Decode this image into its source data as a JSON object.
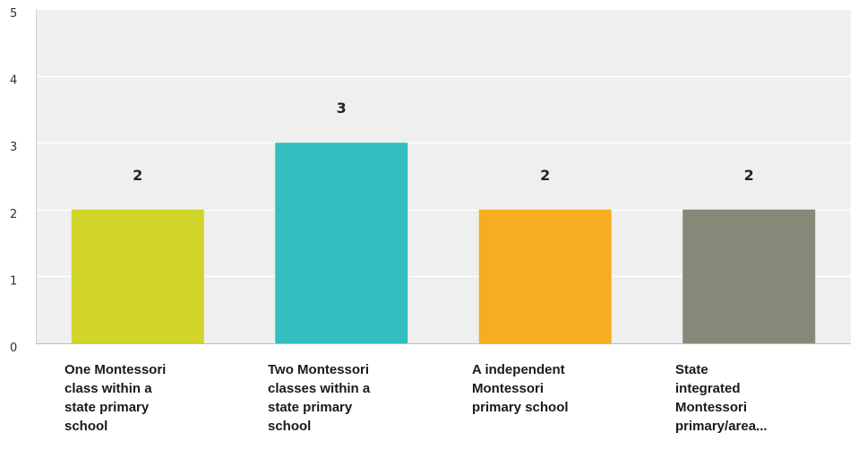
{
  "chart_data": {
    "type": "bar",
    "categories": [
      "One Montessori class within a state primary school",
      "Two Montessori classes within a state primary school",
      "A independent Montessori primary school",
      "State integrated Montessori primary/area..."
    ],
    "category_labels": [
      [
        "One Montessori",
        "class within a",
        "state primary",
        "school"
      ],
      [
        "Two Montessori",
        "classes within a",
        "state primary",
        "school"
      ],
      [
        "A independent",
        "Montessori",
        "primary school"
      ],
      [
        "State",
        "integrated",
        "Montessori",
        "primary/area..."
      ]
    ],
    "values": [
      2,
      3,
      2,
      2
    ],
    "data_labels": [
      "2",
      "3",
      "2",
      "2"
    ],
    "colors": [
      "#d1d42a",
      "#33bfc0",
      "#f6ad1f",
      "#878878"
    ],
    "yticks": [
      "0",
      "1",
      "2",
      "3",
      "4",
      "5"
    ],
    "ylim": [
      0,
      5
    ],
    "grid": true,
    "plot_background": "#efefef",
    "title": "",
    "xlabel": "",
    "ylabel": ""
  }
}
